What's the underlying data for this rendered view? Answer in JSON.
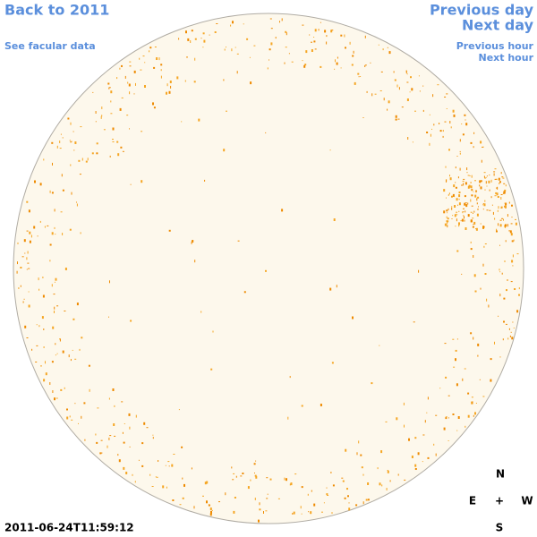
{
  "links": {
    "back": "Back to 2011",
    "facular": "See facular data",
    "prev_day": "Previous day",
    "next_day": "Next day",
    "prev_hour": "Previous hour",
    "next_hour": "Next hour"
  },
  "timestamp": "2011-06-24T11:59:12",
  "compass": {
    "north": "N",
    "east": "E",
    "center": "+",
    "west": "W",
    "south": "S"
  }
}
